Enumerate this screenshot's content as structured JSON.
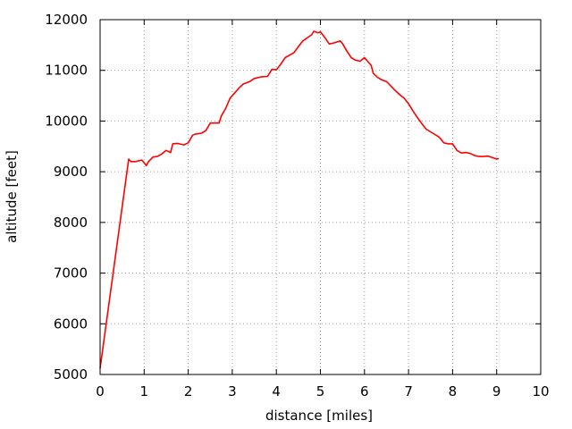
{
  "chart_data": {
    "type": "line",
    "title": "",
    "xlabel": "distance [miles]",
    "ylabel": "altitude [feet]",
    "xlim": [
      0,
      10
    ],
    "ylim": [
      5000,
      12000
    ],
    "x_ticks": [
      0,
      1,
      2,
      3,
      4,
      5,
      6,
      7,
      8,
      9,
      10
    ],
    "y_ticks": [
      5000,
      6000,
      7000,
      8000,
      9000,
      10000,
      11000,
      12000
    ],
    "x_tick_labels": [
      "0",
      "1",
      "2",
      "3",
      "4",
      "5",
      "6",
      "7",
      "8",
      "9",
      "10"
    ],
    "y_tick_labels": [
      "5000",
      "6000",
      "7000",
      "8000",
      "9000",
      "10000",
      "11000",
      "12000"
    ],
    "grid": true,
    "legend": "none",
    "line_color": "#ff0000",
    "series": [
      {
        "x": [
          0,
          0.65,
          0.7,
          0.8,
          0.95,
          1.05,
          1.1,
          1.2,
          1.3,
          1.4,
          1.5,
          1.6,
          1.65,
          1.75,
          1.9,
          2.0,
          2.1,
          2.15,
          2.3,
          2.4,
          2.5,
          2.6,
          2.7,
          2.75,
          2.85,
          2.95,
          3.05,
          3.15,
          3.25,
          3.4,
          3.5,
          3.65,
          3.8,
          3.9,
          4.0,
          4.1,
          4.2,
          4.3,
          4.4,
          4.5,
          4.6,
          4.7,
          4.8,
          4.85,
          4.95,
          5.0,
          5.1,
          5.2,
          5.3,
          5.45,
          5.5,
          5.6,
          5.7,
          5.8,
          5.9,
          6.0,
          6.05,
          6.15,
          6.2,
          6.3,
          6.4,
          6.5,
          6.6,
          6.7,
          6.8,
          6.9,
          7.0,
          7.1,
          7.2,
          7.3,
          7.4,
          7.55,
          7.7,
          7.8,
          7.9,
          8.0,
          8.1,
          8.2,
          8.3,
          8.4,
          8.5,
          8.6,
          8.7,
          8.8,
          8.9,
          9.0,
          9.05
        ],
        "y": [
          5120,
          9250,
          9200,
          9200,
          9230,
          9120,
          9200,
          9290,
          9300,
          9350,
          9420,
          9380,
          9550,
          9560,
          9530,
          9570,
          9720,
          9740,
          9760,
          9810,
          9960,
          9960,
          9960,
          10100,
          10250,
          10450,
          10550,
          10650,
          10730,
          10780,
          10840,
          10870,
          10880,
          11020,
          11010,
          11120,
          11250,
          11300,
          11350,
          11470,
          11580,
          11640,
          11700,
          11770,
          11740,
          11760,
          11650,
          11520,
          11540,
          11580,
          11530,
          11380,
          11250,
          11200,
          11180,
          11250,
          11200,
          11100,
          10940,
          10860,
          10810,
          10780,
          10690,
          10600,
          10520,
          10450,
          10340,
          10200,
          10070,
          9950,
          9840,
          9760,
          9680,
          9570,
          9550,
          9550,
          9420,
          9370,
          9380,
          9360,
          9320,
          9300,
          9300,
          9310,
          9280,
          9250,
          9260
        ]
      }
    ]
  }
}
